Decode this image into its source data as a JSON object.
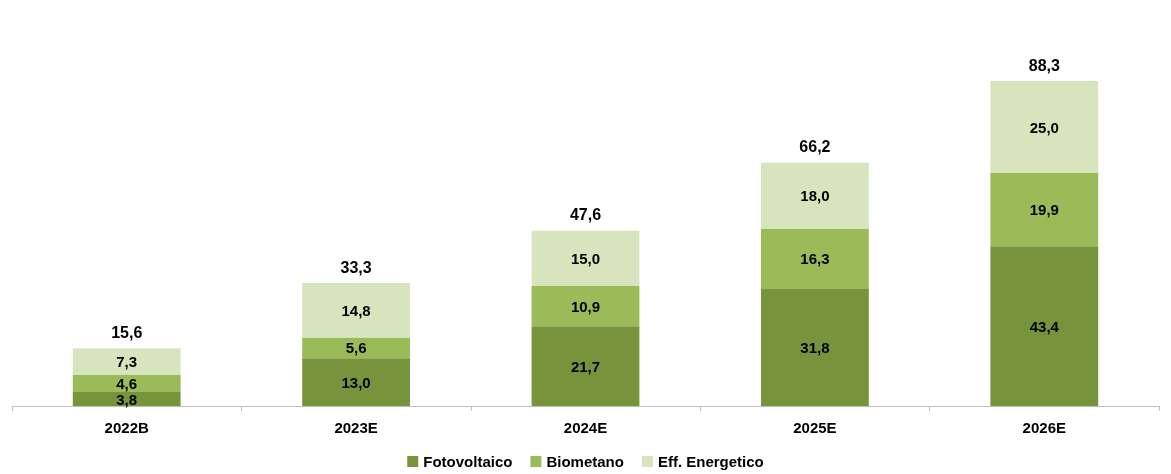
{
  "chart_data": {
    "type": "bar",
    "stacked": true,
    "categories": [
      "2022B",
      "2023E",
      "2024E",
      "2025E",
      "2026E"
    ],
    "series": [
      {
        "name": "Fotovoltaico",
        "color": "#77933c",
        "values": [
          3.8,
          13.0,
          21.7,
          31.8,
          43.4
        ],
        "value_labels": [
          "3,8",
          "13,0",
          "21,7",
          "31,8",
          "43,4"
        ]
      },
      {
        "name": "Biometano",
        "color": "#9bbb59",
        "values": [
          4.6,
          5.6,
          10.9,
          16.3,
          19.9
        ],
        "value_labels": [
          "4,6",
          "5,6",
          "10,9",
          "16,3",
          "19,9"
        ]
      },
      {
        "name": "Eff. Energetico",
        "color": "#d7e4bd",
        "values": [
          7.3,
          14.8,
          15.0,
          18.0,
          25.0
        ],
        "value_labels": [
          "7,3",
          "14,8",
          "15,0",
          "18,0",
          "25,0"
        ]
      }
    ],
    "totals": [
      "15,6",
      "33,3",
      "47,6",
      "66,2",
      "88,3"
    ],
    "legend": "bottom"
  }
}
